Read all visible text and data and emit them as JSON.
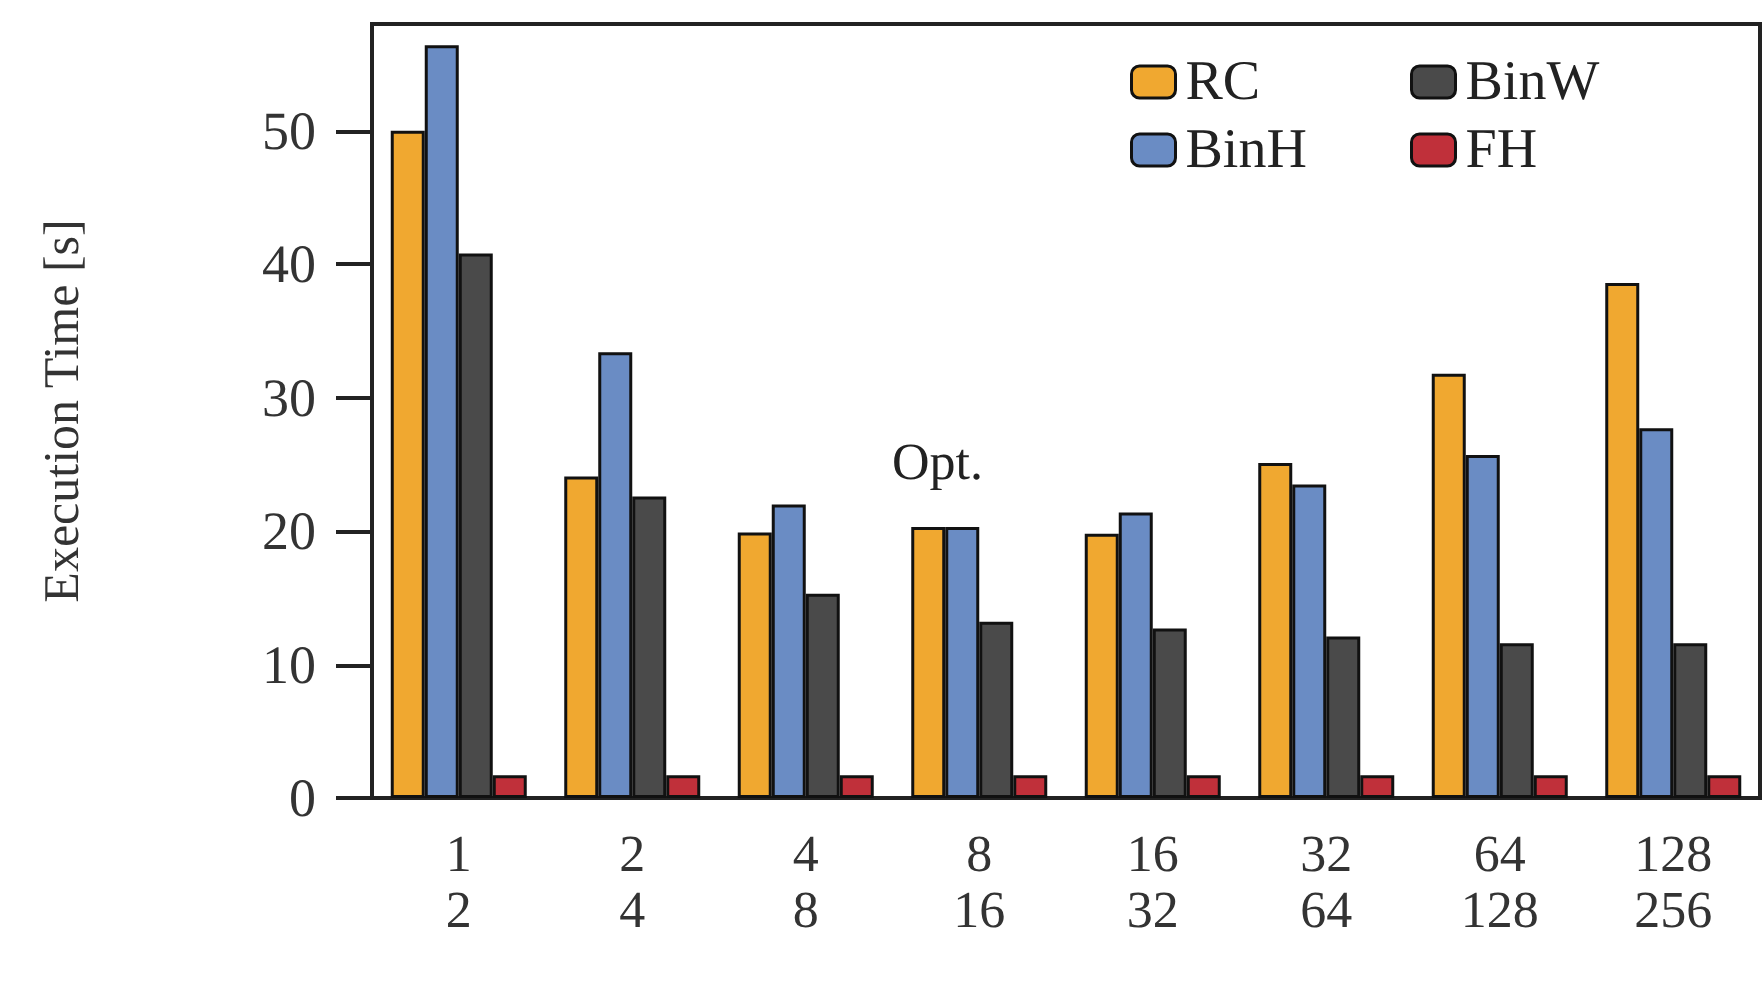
{
  "chart_data": {
    "type": "bar",
    "ylabel": "Execution Time [s]",
    "categories": [
      "1\n2",
      "2\n4",
      "4\n8",
      "8\n16",
      "16\n32",
      "32\n64",
      "64\n128",
      "128\n256"
    ],
    "series": [
      {
        "name": "RC",
        "color": "#f0a830",
        "values": [
          50.0,
          24.1,
          19.9,
          20.3,
          19.8,
          25.1,
          31.8,
          38.6
        ]
      },
      {
        "name": "BinH",
        "color": "#6a8cc4",
        "values": [
          56.4,
          33.4,
          22.0,
          20.3,
          21.4,
          23.5,
          25.7,
          27.7
        ]
      },
      {
        "name": "BinW",
        "color": "#4a4a4a",
        "values": [
          40.8,
          22.6,
          15.3,
          13.2,
          12.7,
          12.1,
          11.6,
          11.6
        ]
      },
      {
        "name": "FH",
        "color": "#c0303a",
        "values": [
          1.7,
          1.7,
          1.7,
          1.7,
          1.7,
          1.7,
          1.7,
          1.7
        ]
      }
    ],
    "annotations": [
      "Opt."
    ],
    "ylim": [
      0,
      58
    ],
    "yticks": [
      0,
      10,
      20,
      30,
      40,
      50
    ],
    "grid": false,
    "legend": "top right"
  }
}
